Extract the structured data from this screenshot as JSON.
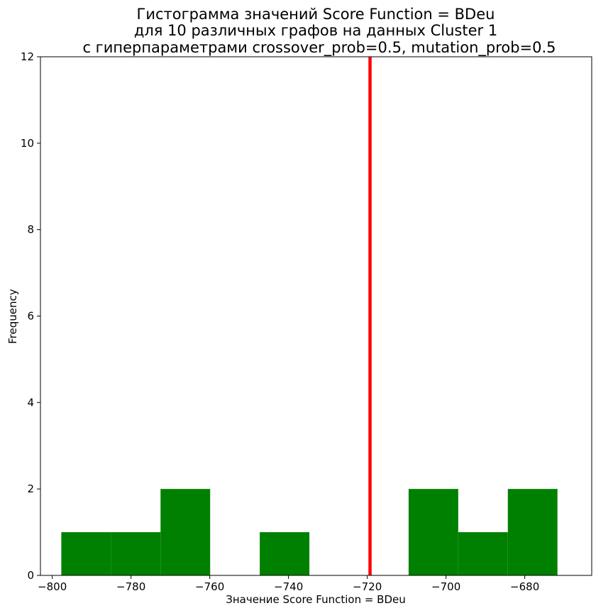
{
  "chart_data": {
    "type": "histogram",
    "title_lines": [
      "Гистограмма значений Score Function = BDeu",
      "для 10 различных графов на данных Cluster 1",
      "с гиперпараметрами crossover_prob=0.5, mutation_prob=0.5"
    ],
    "xlabel": "Значение Score Function = BDeu",
    "ylabel": "Frequency",
    "xlim": [
      -803,
      -663
    ],
    "ylim": [
      0,
      12
    ],
    "x_ticks": [
      -800,
      -780,
      -760,
      -740,
      -720,
      -700,
      -680
    ],
    "x_tick_labels": [
      "−800",
      "−780",
      "−760",
      "−740",
      "−720",
      "−700",
      "−680"
    ],
    "y_ticks": [
      0,
      2,
      4,
      6,
      8,
      10,
      12
    ],
    "y_tick_labels": [
      "0",
      "2",
      "4",
      "6",
      "8",
      "10",
      "12"
    ],
    "bins": [
      {
        "start": -797.7,
        "end": -785.1,
        "count": 1
      },
      {
        "start": -785.1,
        "end": -772.5,
        "count": 1
      },
      {
        "start": -772.5,
        "end": -759.9,
        "count": 2
      },
      {
        "start": -759.9,
        "end": -747.3,
        "count": 0
      },
      {
        "start": -747.3,
        "end": -734.7,
        "count": 1
      },
      {
        "start": -734.7,
        "end": -722.1,
        "count": 0
      },
      {
        "start": -722.1,
        "end": -709.5,
        "count": 0
      },
      {
        "start": -709.5,
        "end": -696.9,
        "count": 2
      },
      {
        "start": -696.9,
        "end": -684.3,
        "count": 1
      },
      {
        "start": -684.3,
        "end": -671.7,
        "count": 2
      }
    ],
    "vline": {
      "x": -719.3,
      "color": "#ff0000"
    },
    "bar_color": "#008000",
    "grid": false
  }
}
